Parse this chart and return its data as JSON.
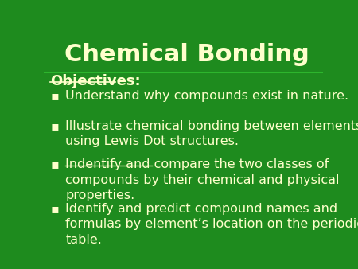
{
  "title": "Chemical Bonding",
  "title_color": "#FFFFCC",
  "title_fontsize": 22,
  "background_color": "#1E8B1E",
  "objectives_label": "Objectives:",
  "objectives_color": "#FFFFCC",
  "objectives_fontsize": 13,
  "bullet_color": "#FFFFCC",
  "bullet_fontsize": 11.5,
  "bullets": [
    "Understand why compounds exist in nature.",
    "Illustrate chemical bonding between elements\nusing Lewis Dot structures.",
    "Indentify and compare the two classes of\ncompounds by their chemical and physical\nproperties.",
    "Identify and predict compound names and\nformulas by element’s location on the periodic\ntable."
  ],
  "bullet_symbol": "▪",
  "line_color": "#2DB52D"
}
